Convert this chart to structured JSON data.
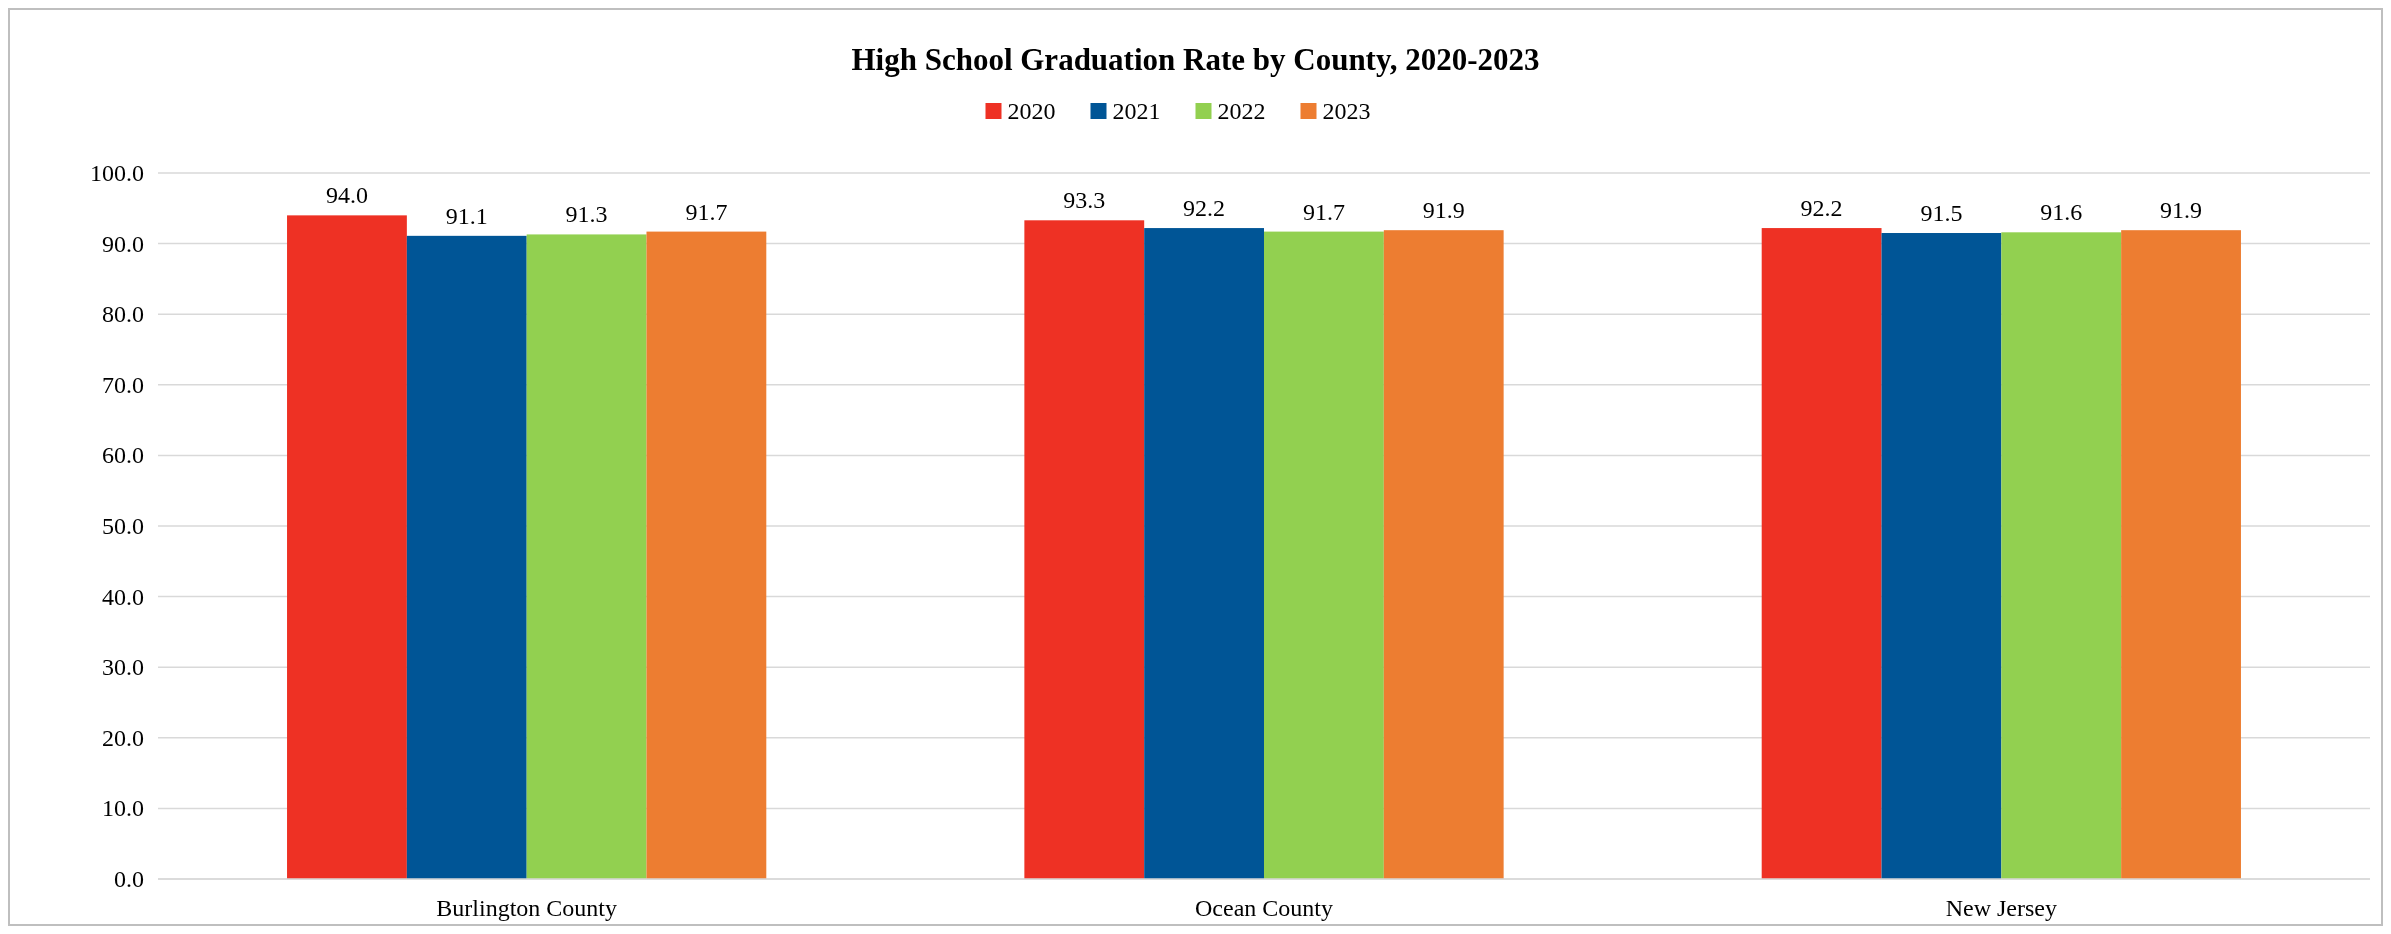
{
  "chart_data": {
    "type": "bar",
    "title": "High School Graduation Rate by County, 2020-2023",
    "categories": [
      "Burlington County",
      "Ocean County",
      "New Jersey"
    ],
    "series": [
      {
        "name": "2020",
        "color": "#ee3124",
        "values": [
          94.0,
          93.3,
          92.2
        ],
        "value_labels": [
          "94.0",
          "93.3",
          "92.2"
        ]
      },
      {
        "name": "2021",
        "color": "#005596",
        "values": [
          91.1,
          92.2,
          91.5
        ],
        "value_labels": [
          "91.1",
          "92.2",
          "91.5"
        ]
      },
      {
        "name": "2022",
        "color": "#92d050",
        "values": [
          91.3,
          91.7,
          91.6
        ],
        "value_labels": [
          "91.3",
          "91.7",
          "91.6"
        ]
      },
      {
        "name": "2023",
        "color": "#ed7d31",
        "values": [
          91.7,
          91.9,
          91.9
        ],
        "value_labels": [
          "91.7",
          "91.9",
          "91.9"
        ]
      }
    ],
    "ylim": [
      0,
      100
    ],
    "yticks": [
      {
        "value": 0,
        "label": "0.0"
      },
      {
        "value": 10,
        "label": "10.0"
      },
      {
        "value": 20,
        "label": "20.0"
      },
      {
        "value": 30,
        "label": "30.0"
      },
      {
        "value": 40,
        "label": "40.0"
      },
      {
        "value": 50,
        "label": "50.0"
      },
      {
        "value": 60,
        "label": "60.0"
      },
      {
        "value": 70,
        "label": "70.0"
      },
      {
        "value": 80,
        "label": "80.0"
      },
      {
        "value": 90,
        "label": "90.0"
      },
      {
        "value": 100,
        "label": "100.0"
      }
    ],
    "grid": "y",
    "legend": "top"
  }
}
